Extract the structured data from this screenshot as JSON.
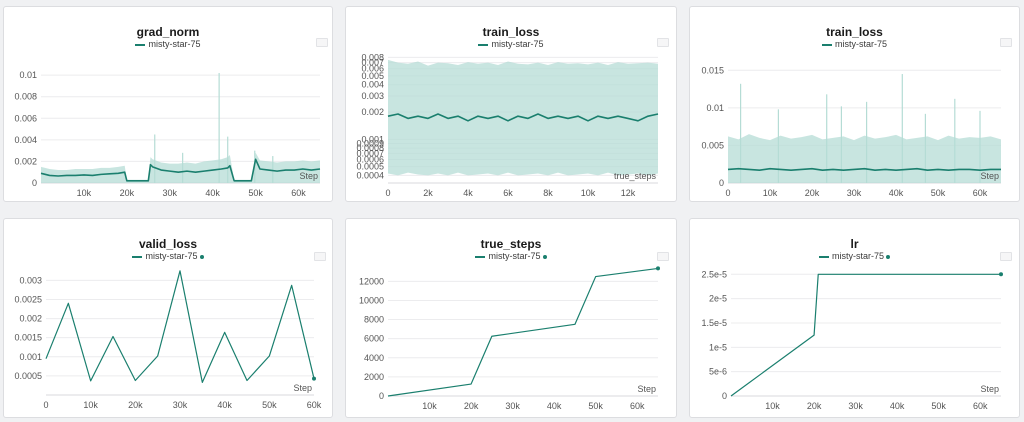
{
  "series_color": "#1a7f6e",
  "band_color": "#b5dcd5",
  "chart_data": [
    {
      "id": "grad_norm",
      "type": "line",
      "title": "grad_norm",
      "legend": [
        "misty-star-75"
      ],
      "legend_dot": false,
      "xlabel": "Step",
      "xlim": [
        0,
        65000
      ],
      "ylim": [
        0,
        0.0115
      ],
      "yscale": "linear",
      "xticks": [
        10000,
        20000,
        30000,
        40000,
        50000,
        60000
      ],
      "xtick_labels": [
        "10k",
        "20k",
        "30k",
        "40k",
        "50k",
        "60k"
      ],
      "yticks": [
        0,
        0.002,
        0.004,
        0.006,
        0.008,
        0.01
      ],
      "ytick_labels": [
        "0",
        "0.002",
        "0.004",
        "0.006",
        "0.008",
        "0.01"
      ],
      "band": true,
      "x": [
        0,
        2000,
        4000,
        6000,
        8000,
        10000,
        12000,
        14000,
        16000,
        18000,
        19500,
        20000,
        22000,
        24000,
        25000,
        25500,
        26000,
        28000,
        30000,
        32000,
        34000,
        36000,
        38000,
        40000,
        42000,
        43500,
        44000,
        45000,
        46000,
        48000,
        49000,
        50000,
        51000,
        53000,
        55000,
        57000,
        59000,
        61000,
        63000,
        65000
      ],
      "y": [
        0.0009,
        0.0007,
        0.00065,
        0.0007,
        0.0007,
        0.00075,
        0.0007,
        0.0008,
        0.00085,
        0.0009,
        0.001,
        0.0002,
        0.0002,
        0.0002,
        0.0002,
        0.0017,
        0.0015,
        0.0012,
        0.0011,
        0.001,
        0.0011,
        0.001,
        0.0011,
        0.0012,
        0.0013,
        0.0014,
        0.0016,
        0.0002,
        0.0002,
        0.0002,
        0.0002,
        0.0022,
        0.0013,
        0.0012,
        0.0011,
        0.0012,
        0.0012,
        0.0013,
        0.0012,
        0.0013
      ],
      "band_upper": [
        0.0015,
        0.0013,
        0.0012,
        0.0012,
        0.0013,
        0.0013,
        0.0013,
        0.0014,
        0.0014,
        0.0015,
        0.0016,
        0.0003,
        0.0003,
        0.0003,
        0.0003,
        0.0024,
        0.0022,
        0.0019,
        0.0018,
        0.0018,
        0.0019,
        0.0018,
        0.002,
        0.0021,
        0.0022,
        0.0024,
        0.0026,
        0.0003,
        0.0003,
        0.0003,
        0.0003,
        0.0028,
        0.0021,
        0.002,
        0.0019,
        0.002,
        0.002,
        0.0021,
        0.002,
        0.0021
      ],
      "spikes": [
        [
          26500,
          0.0045
        ],
        [
          33000,
          0.0028
        ],
        [
          41500,
          0.0102
        ],
        [
          43500,
          0.0043
        ],
        [
          49800,
          0.003
        ],
        [
          54000,
          0.0025
        ]
      ]
    },
    {
      "id": "train_loss_true_steps",
      "type": "line",
      "title": "train_loss",
      "legend": [
        "misty-star-75"
      ],
      "legend_dot": false,
      "xlabel": "true_steps",
      "xlim": [
        0,
        13500
      ],
      "ylim": [
        0.00033,
        0.0085
      ],
      "yscale": "log",
      "xticks": [
        0,
        2000,
        4000,
        6000,
        8000,
        10000,
        12000
      ],
      "xtick_labels": [
        "0",
        "2k",
        "4k",
        "6k",
        "8k",
        "10k",
        "12k"
      ],
      "yticks": [
        0.0004,
        0.0005,
        0.0006,
        0.0007,
        0.0008,
        0.0009,
        0.001,
        0.002,
        0.003,
        0.004,
        0.005,
        0.006,
        0.007,
        0.008
      ],
      "ytick_labels": [
        "0.0004",
        "0.0005",
        "0.0006",
        "0.0007",
        "0.0008",
        "0.0009",
        "0.001",
        "0.002",
        "0.003",
        "0.004",
        "0.005",
        "0.006",
        "0.007",
        "0.008"
      ],
      "band": true,
      "x": [
        0,
        500,
        1000,
        1500,
        2000,
        2500,
        3000,
        3500,
        4000,
        4500,
        5000,
        5500,
        6000,
        6500,
        7000,
        7500,
        8000,
        8500,
        9000,
        9500,
        10000,
        10500,
        11000,
        11500,
        12000,
        12500,
        13000,
        13500
      ],
      "y": [
        0.0018,
        0.0019,
        0.0017,
        0.0018,
        0.0017,
        0.0019,
        0.0017,
        0.0018,
        0.0016,
        0.0018,
        0.0017,
        0.0018,
        0.0016,
        0.0018,
        0.0017,
        0.0019,
        0.0017,
        0.0018,
        0.0017,
        0.0018,
        0.0016,
        0.0018,
        0.0017,
        0.0018,
        0.0017,
        0.0016,
        0.0018,
        0.0019
      ],
      "band_upper": [
        0.0075,
        0.007,
        0.0068,
        0.0072,
        0.0065,
        0.007,
        0.0069,
        0.0066,
        0.0071,
        0.0068,
        0.007,
        0.0066,
        0.0072,
        0.0068,
        0.0067,
        0.007,
        0.0066,
        0.0071,
        0.0068,
        0.0069,
        0.0067,
        0.007,
        0.0066,
        0.0071,
        0.0068,
        0.0069,
        0.007,
        0.0068
      ],
      "band_lower": [
        0.00042,
        0.0004,
        0.00043,
        0.00041,
        0.0004,
        0.00042,
        0.0004,
        0.00043,
        0.0004,
        0.00041,
        0.00042,
        0.0004,
        0.00043,
        0.0004,
        0.00041,
        0.00042,
        0.0004,
        0.00043,
        0.0004,
        0.00041,
        0.00042,
        0.0004,
        0.00043,
        0.0004,
        0.00041,
        0.00042,
        0.0004,
        0.00042
      ],
      "spikes": []
    },
    {
      "id": "train_loss_step",
      "type": "line",
      "title": "train_loss",
      "legend": [
        "misty-star-75"
      ],
      "legend_dot": false,
      "xlabel": "Step",
      "xlim": [
        0,
        65000
      ],
      "ylim": [
        0,
        0.0165
      ],
      "yscale": "linear",
      "xticks": [
        0,
        10000,
        20000,
        30000,
        40000,
        50000,
        60000
      ],
      "xtick_labels": [
        "0",
        "10k",
        "20k",
        "30k",
        "40k",
        "50k",
        "60k"
      ],
      "yticks": [
        0,
        0.005,
        0.01,
        0.015
      ],
      "ytick_labels": [
        "0",
        "0.005",
        "0.01",
        "0.015"
      ],
      "band": true,
      "x": [
        0,
        2500,
        5000,
        7500,
        10000,
        12500,
        15000,
        17500,
        20000,
        22500,
        25000,
        27500,
        30000,
        32500,
        35000,
        37500,
        40000,
        42500,
        45000,
        47500,
        50000,
        52500,
        55000,
        57500,
        60000,
        62500,
        65000
      ],
      "y": [
        0.0018,
        0.0019,
        0.0018,
        0.0017,
        0.0019,
        0.0018,
        0.0017,
        0.0018,
        0.0019,
        0.0017,
        0.0018,
        0.0017,
        0.0018,
        0.0019,
        0.0017,
        0.0018,
        0.0017,
        0.0018,
        0.0019,
        0.0017,
        0.0018,
        0.0017,
        0.0018,
        0.0018,
        0.0017,
        0.0018,
        0.0018
      ],
      "band_upper": [
        0.0062,
        0.0058,
        0.0065,
        0.006,
        0.0057,
        0.0063,
        0.0059,
        0.0061,
        0.0064,
        0.0058,
        0.006,
        0.0062,
        0.0057,
        0.0063,
        0.0059,
        0.0061,
        0.0064,
        0.0058,
        0.006,
        0.0062,
        0.0057,
        0.0063,
        0.0059,
        0.0061,
        0.006,
        0.0062,
        0.0058
      ],
      "spikes": [
        [
          3000,
          0.0132
        ],
        [
          12000,
          0.0098
        ],
        [
          23500,
          0.0118
        ],
        [
          27000,
          0.0102
        ],
        [
          33000,
          0.0108
        ],
        [
          41500,
          0.0145
        ],
        [
          47000,
          0.0092
        ],
        [
          54000,
          0.0112
        ],
        [
          60000,
          0.0096
        ]
      ]
    },
    {
      "id": "valid_loss",
      "type": "line",
      "title": "valid_loss",
      "legend": [
        "misty-star-75"
      ],
      "legend_dot": true,
      "xlabel": "Step",
      "xlim": [
        0,
        60000
      ],
      "ylim": [
        0,
        0.00335
      ],
      "yscale": "linear",
      "xticks": [
        0,
        10000,
        20000,
        30000,
        40000,
        50000,
        60000
      ],
      "xtick_labels": [
        "0",
        "10k",
        "20k",
        "30k",
        "40k",
        "50k",
        "60k"
      ],
      "yticks": [
        0.0005,
        0.001,
        0.0015,
        0.002,
        0.0025,
        0.003
      ],
      "ytick_labels": [
        "0.0005",
        "0.001",
        "0.0015",
        "0.002",
        "0.0025",
        "0.003"
      ],
      "band": false,
      "x": [
        0,
        5000,
        10000,
        15000,
        20000,
        25000,
        30000,
        35000,
        40000,
        45000,
        50000,
        55000,
        60000
      ],
      "y": [
        0.00095,
        0.0024,
        0.00037,
        0.00153,
        0.00038,
        0.00102,
        0.00325,
        0.00033,
        0.00164,
        0.00038,
        0.00102,
        0.00287,
        0.00043
      ],
      "spikes": []
    },
    {
      "id": "true_steps",
      "type": "line",
      "title": "true_steps",
      "legend": [
        "misty-star-75"
      ],
      "legend_dot": true,
      "xlabel": "Step",
      "xlim": [
        0,
        65000
      ],
      "ylim": [
        0,
        13500
      ],
      "yscale": "linear",
      "xticks": [
        10000,
        20000,
        30000,
        40000,
        50000,
        60000
      ],
      "xtick_labels": [
        "10k",
        "20k",
        "30k",
        "40k",
        "50k",
        "60k"
      ],
      "yticks": [
        0,
        2000,
        4000,
        6000,
        8000,
        10000,
        12000
      ],
      "ytick_labels": [
        "0",
        "2000",
        "4000",
        "6000",
        "8000",
        "10000",
        "12000"
      ],
      "band": false,
      "x": [
        0,
        20000,
        25000,
        45000,
        50000,
        65000
      ],
      "y": [
        0,
        1250,
        6250,
        7500,
        12500,
        13350
      ],
      "spikes": []
    },
    {
      "id": "lr",
      "type": "line",
      "title": "lr",
      "legend": [
        "misty-star-75"
      ],
      "legend_dot": true,
      "xlabel": "Step",
      "xlim": [
        0,
        65000
      ],
      "ylim": [
        0,
        2.65e-05
      ],
      "yscale": "linear",
      "xticks": [
        10000,
        20000,
        30000,
        40000,
        50000,
        60000
      ],
      "xtick_labels": [
        "10k",
        "20k",
        "30k",
        "40k",
        "50k",
        "60k"
      ],
      "yticks": [
        0,
        5e-06,
        1e-05,
        1.5e-05,
        2e-05,
        2.5e-05
      ],
      "ytick_labels": [
        "0",
        "5e-6",
        "1e-5",
        "1.5e-5",
        "2e-5",
        "2.5e-5"
      ],
      "band": false,
      "x": [
        0,
        20000,
        21000,
        65000
      ],
      "y": [
        0,
        1.25e-05,
        2.5e-05,
        2.5e-05
      ],
      "spikes": []
    }
  ]
}
